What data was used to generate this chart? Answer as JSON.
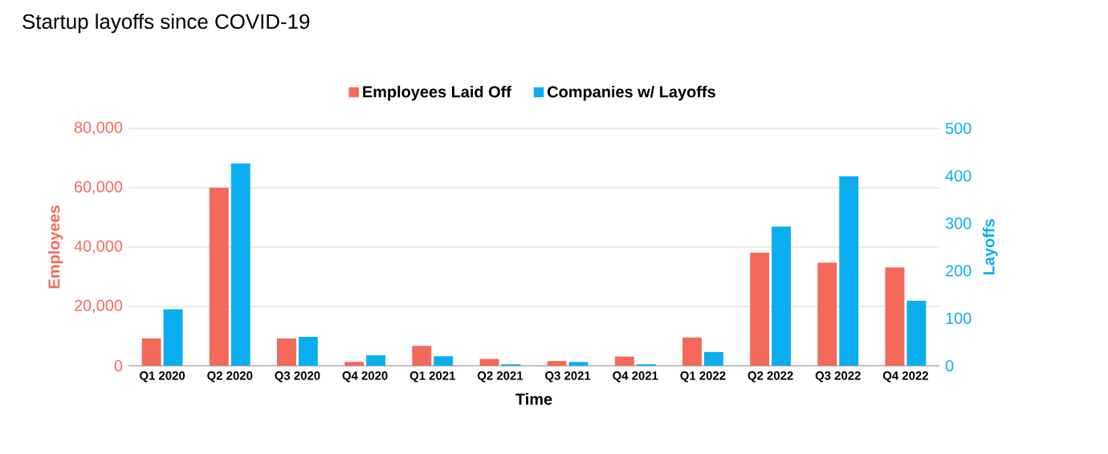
{
  "chart_data": {
    "type": "bar",
    "title": "Startup layoffs since COVID-19",
    "xlabel": "Time",
    "ylabel": "Employees",
    "y2label": "Layoffs",
    "categories": [
      "Q1 2020",
      "Q2 2020",
      "Q3 2020",
      "Q4 2020",
      "Q1 2021",
      "Q2 2021",
      "Q3 2021",
      "Q4 2021",
      "Q1 2022",
      "Q2 2022",
      "Q3 2022",
      "Q4 2022"
    ],
    "series": [
      {
        "name": "Employees Laid Off",
        "color": "#f4695a",
        "values": [
          9200,
          60000,
          9200,
          1300,
          6700,
          2300,
          1600,
          3100,
          9500,
          38100,
          34700,
          33100
        ]
      },
      {
        "name": "Companies w/ Layoffs",
        "color": "#0aaeef",
        "axis": "y2",
        "values": [
          119,
          426,
          61,
          22,
          20,
          3,
          8,
          3,
          29,
          293,
          399,
          137
        ]
      }
    ],
    "ylim": [
      0,
      80000
    ],
    "yticks": [
      {
        "value": 0,
        "label": "0"
      },
      {
        "value": 20000,
        "label": "20,000"
      },
      {
        "value": 40000,
        "label": "40,000"
      },
      {
        "value": 60000,
        "label": "60,000"
      },
      {
        "value": 80000,
        "label": "80,000"
      }
    ],
    "y2lim": [
      0,
      500
    ],
    "y2ticks": [
      0,
      100,
      200,
      300,
      400,
      500
    ],
    "grid": "y",
    "legend": "top"
  }
}
